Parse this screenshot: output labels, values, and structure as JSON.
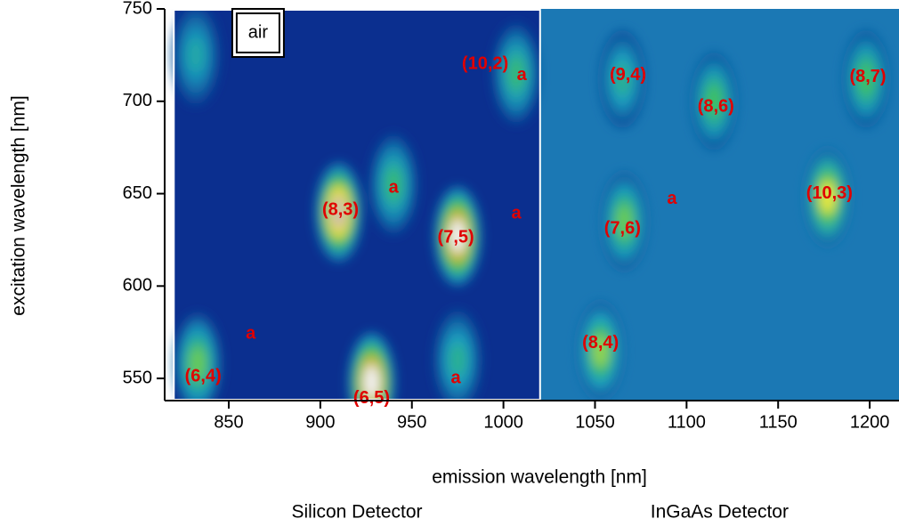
{
  "chart_data": {
    "type": "heatmap",
    "xlabel": "emission wavelength [nm]",
    "ylabel": "excitation wavelength [nm]",
    "xlim": [
      815,
      1216
    ],
    "ylim": [
      538,
      750
    ],
    "xticks": [
      850,
      900,
      950,
      1000,
      1050,
      1100,
      1150,
      1200
    ],
    "yticks": [
      550,
      600,
      650,
      700,
      750
    ],
    "detectors": [
      {
        "name": "Silicon Detector",
        "range": [
          820,
          1020
        ]
      },
      {
        "name": "InGaAs Detector",
        "range": [
          1020,
          1216
        ]
      }
    ],
    "inset_label": {
      "text": "air",
      "x": 866,
      "y": 737
    },
    "peaks": [
      {
        "x": 910,
        "y": 640,
        "intensity": 0.95
      },
      {
        "x": 975,
        "y": 627,
        "intensity": 1.0
      },
      {
        "x": 928,
        "y": 548,
        "intensity": 1.0
      },
      {
        "x": 833,
        "y": 558,
        "intensity": 0.55
      },
      {
        "x": 832,
        "y": 725,
        "intensity": 0.35
      },
      {
        "x": 1007,
        "y": 715,
        "intensity": 0.45
      },
      {
        "x": 940,
        "y": 655,
        "intensity": 0.45
      },
      {
        "x": 975,
        "y": 560,
        "intensity": 0.4
      },
      {
        "x": 1177,
        "y": 648,
        "intensity": 0.7
      },
      {
        "x": 1053,
        "y": 565,
        "intensity": 0.6
      },
      {
        "x": 1066,
        "y": 635,
        "intensity": 0.55
      },
      {
        "x": 1065,
        "y": 712,
        "intensity": 0.4
      },
      {
        "x": 1115,
        "y": 700,
        "intensity": 0.5
      },
      {
        "x": 1198,
        "y": 712,
        "intensity": 0.5
      }
    ],
    "annotations": [
      {
        "label": "(10,2)",
        "x": 990,
        "y": 720
      },
      {
        "label": "a",
        "x": 1010,
        "y": 714
      },
      {
        "label": "(9,4)",
        "x": 1068,
        "y": 714
      },
      {
        "label": "(8,6)",
        "x": 1116,
        "y": 697
      },
      {
        "label": "(8,7)",
        "x": 1199,
        "y": 713
      },
      {
        "label": "(8,3)",
        "x": 911,
        "y": 641
      },
      {
        "label": "a",
        "x": 940,
        "y": 653
      },
      {
        "label": "(7,5)",
        "x": 974,
        "y": 626
      },
      {
        "label": "a",
        "x": 1007,
        "y": 639
      },
      {
        "label": "(7,6)",
        "x": 1065,
        "y": 631
      },
      {
        "label": "a",
        "x": 1092,
        "y": 647
      },
      {
        "label": "(10,3)",
        "x": 1178,
        "y": 650
      },
      {
        "label": "a",
        "x": 862,
        "y": 574
      },
      {
        "label": "(8,4)",
        "x": 1053,
        "y": 569
      },
      {
        "label": "(6,4)",
        "x": 836,
        "y": 551
      },
      {
        "label": "(6,5)",
        "x": 928,
        "y": 539
      },
      {
        "label": "a",
        "x": 974,
        "y": 550
      }
    ]
  }
}
